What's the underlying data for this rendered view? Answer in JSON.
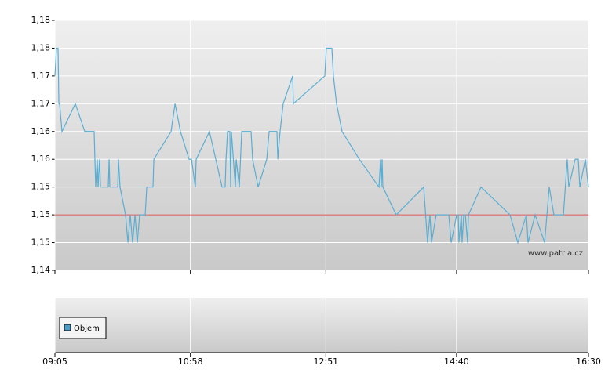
{
  "chart_data": {
    "type": "line",
    "watermark": "www.patria.cz",
    "volume_legend": "Objem",
    "volume_color": "#4a9cc8",
    "x": [
      545,
      546.3,
      547.6,
      548.3,
      548.9,
      550.9,
      562.0,
      569.9,
      577.7,
      579.0,
      580.3,
      581.0,
      582.3,
      583.0,
      589.5,
      590.2,
      590.8,
      597.4,
      598.0,
      599.3,
      603.9,
      605.9,
      607.8,
      609.8,
      611.8,
      613.7,
      615.7,
      620.3,
      621.6,
      626.8,
      627.5,
      641.9,
      645.2,
      649.7,
      656.9,
      658.9,
      662.1,
      662.8,
      673.9,
      684.4,
      687.0,
      687.7,
      689.0,
      690.9,
      691.6,
      692.2,
      695.5,
      696.2,
      698.8,
      700.8,
      708.6,
      709.9,
      714.5,
      721.7,
      723.7,
      730.2,
      730.9,
      732.8,
      735.4,
      743.3,
      743.9,
      770.1,
      771.4,
      776.0,
      777.3,
      779.9,
      784.5,
      798.9,
      815.3,
      816.6,
      817.2,
      817.9,
      818.5,
      829.7,
      852.6,
      855.8,
      857.8,
      859.1,
      863.0,
      873.5,
      875.5,
      880.1,
      881.4,
      882.0,
      884.0,
      884.6,
      886.0,
      887.3,
      889.2,
      889.9,
      900.4,
      924.6,
      931.1,
      938.3,
      939.6,
      945.5,
      953.4,
      957.3,
      961.2,
      969.1,
      972.3,
      973.6,
      978.9,
      981.5,
      982.8,
      987.4,
      990
    ],
    "series": [
      {
        "color": "#5aaed3",
        "values": [
          1.175,
          1.18,
          1.18,
          1.17,
          1.17,
          1.165,
          1.17,
          1.165,
          1.165,
          1.155,
          1.16,
          1.155,
          1.16,
          1.155,
          1.155,
          1.16,
          1.155,
          1.155,
          1.16,
          1.155,
          1.15,
          1.145,
          1.15,
          1.145,
          1.15,
          1.145,
          1.15,
          1.15,
          1.155,
          1.155,
          1.16,
          1.165,
          1.17,
          1.165,
          1.16,
          1.16,
          1.155,
          1.16,
          1.165,
          1.155,
          1.155,
          1.16,
          1.165,
          1.165,
          1.155,
          1.165,
          1.155,
          1.16,
          1.155,
          1.165,
          1.165,
          1.16,
          1.155,
          1.16,
          1.165,
          1.165,
          1.16,
          1.165,
          1.17,
          1.175,
          1.17,
          1.175,
          1.18,
          1.18,
          1.175,
          1.17,
          1.165,
          1.16,
          1.155,
          1.16,
          1.155,
          1.16,
          1.155,
          1.15,
          1.155,
          1.145,
          1.15,
          1.145,
          1.15,
          1.15,
          1.145,
          1.15,
          1.15,
          1.145,
          1.15,
          1.145,
          1.15,
          1.15,
          1.145,
          1.15,
          1.155,
          1.15,
          1.145,
          1.15,
          1.145,
          1.15,
          1.145,
          1.155,
          1.15,
          1.15,
          1.16,
          1.155,
          1.16,
          1.16,
          1.155,
          1.16,
          1.155
        ]
      }
    ],
    "reference_line": 1.15,
    "reference_color": "#d9534f",
    "xlim": [
      545,
      990
    ],
    "xticks": [
      {
        "value": 545,
        "label": "09:05"
      },
      {
        "value": 658,
        "label": "10:58"
      },
      {
        "value": 771,
        "label": "12:51"
      },
      {
        "value": 880,
        "label": "14:40"
      },
      {
        "value": 990,
        "label": "16:30"
      }
    ],
    "ylim": [
      1.14,
      1.185
    ],
    "yticks": [
      {
        "value": 1.14,
        "label": "1,14"
      },
      {
        "value": 1.145,
        "label": "1,15"
      },
      {
        "value": 1.15,
        "label": "1,15"
      },
      {
        "value": 1.155,
        "label": "1,15"
      },
      {
        "value": 1.16,
        "label": "1,16"
      },
      {
        "value": 1.165,
        "label": "1,16"
      },
      {
        "value": 1.17,
        "label": "1,17"
      },
      {
        "value": 1.175,
        "label": "1,17"
      },
      {
        "value": 1.18,
        "label": "1,18"
      },
      {
        "value": 1.185,
        "label": "1,18"
      }
    ],
    "grid": true
  }
}
